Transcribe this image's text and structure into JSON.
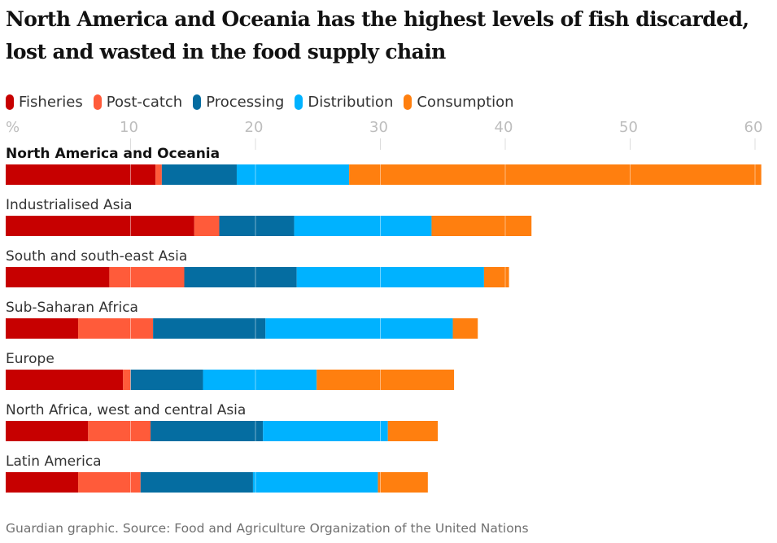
{
  "chart_data": {
    "type": "bar",
    "orientation": "horizontal",
    "stacked": true,
    "title": "North America and Oceania has the highest levels of fish discarded, lost and wasted in the food supply chain",
    "xlim": [
      0,
      60
    ],
    "x_ticks": [
      "%",
      "10",
      "20",
      "30",
      "40",
      "50",
      "60"
    ],
    "x_tick_values": [
      0,
      10,
      20,
      30,
      40,
      50,
      60
    ],
    "grid": true,
    "legend_position": "top-left",
    "categories": [
      "North America and Oceania",
      "Industrialised Asia",
      "South and south-east Asia",
      "Sub-Saharan Africa",
      "Europe",
      "North Africa, west and central Asia",
      "Latin America"
    ],
    "highlight_category": "North America and Oceania",
    "series": [
      {
        "name": "Fisheries",
        "color": "#c70000",
        "values": [
          12.0,
          15.1,
          8.3,
          5.8,
          9.4,
          6.6,
          5.8
        ]
      },
      {
        "name": "Post-catch",
        "color": "#ff5b3a",
        "values": [
          0.5,
          2.0,
          6.0,
          6.0,
          0.6,
          5.0,
          5.0
        ]
      },
      {
        "name": "Processing",
        "color": "#056da1",
        "values": [
          6.0,
          6.0,
          9.0,
          9.0,
          5.8,
          9.0,
          9.0
        ]
      },
      {
        "name": "Distribution",
        "color": "#00b2ff",
        "values": [
          9.0,
          11.0,
          15.0,
          15.0,
          9.1,
          10.0,
          10.0
        ]
      },
      {
        "name": "Consumption",
        "color": "#ff7f0f",
        "values": [
          33.0,
          8.0,
          2.0,
          2.0,
          11.0,
          4.0,
          4.0
        ]
      }
    ]
  },
  "source": "Guardian graphic. Source: Food and Agriculture Organization of the United Nations"
}
